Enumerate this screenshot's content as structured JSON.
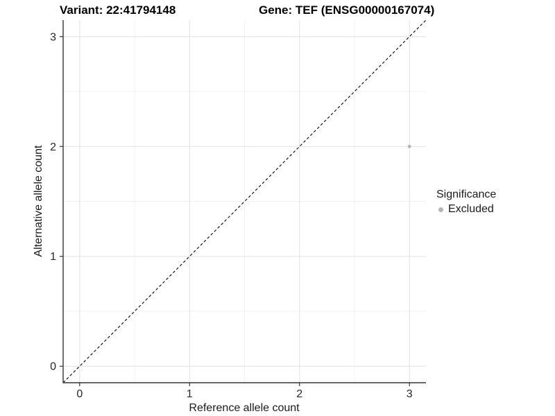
{
  "header": {
    "variant_title": "Variant: 22:41794148",
    "gene_title": "Gene: TEF (ENSG00000167074)"
  },
  "chart_data": {
    "type": "scatter",
    "title": "Variant: 22:41794148   Gene: TEF (ENSG00000167074)",
    "xlabel": "Reference allele count",
    "ylabel": "Alternative allele count",
    "xlim": [
      0,
      3
    ],
    "ylim": [
      0,
      3
    ],
    "expansion_frac": 0.05,
    "xticks": [
      0,
      1,
      2,
      3
    ],
    "yticks": [
      0,
      1,
      2,
      3
    ],
    "minor_gridlines": [
      0.5,
      1.5,
      2.5
    ],
    "grid": true,
    "points": [
      {
        "x": 3,
        "y": 2,
        "significance": "Excluded"
      }
    ],
    "reference_line": {
      "kind": "identity",
      "style": "dashed",
      "color": "#000000"
    },
    "legend": {
      "title": "Significance",
      "position": "right",
      "entries": [
        {
          "label": "Excluded",
          "color": "#b4b4b4",
          "marker": "circle"
        }
      ]
    },
    "colors": {
      "point": "#b4b4b4",
      "grid_major": "#e3e3e3",
      "grid_minor": "#ededed",
      "axis_line": "#333333",
      "tick_label": "#262626",
      "background": "#ffffff"
    }
  }
}
